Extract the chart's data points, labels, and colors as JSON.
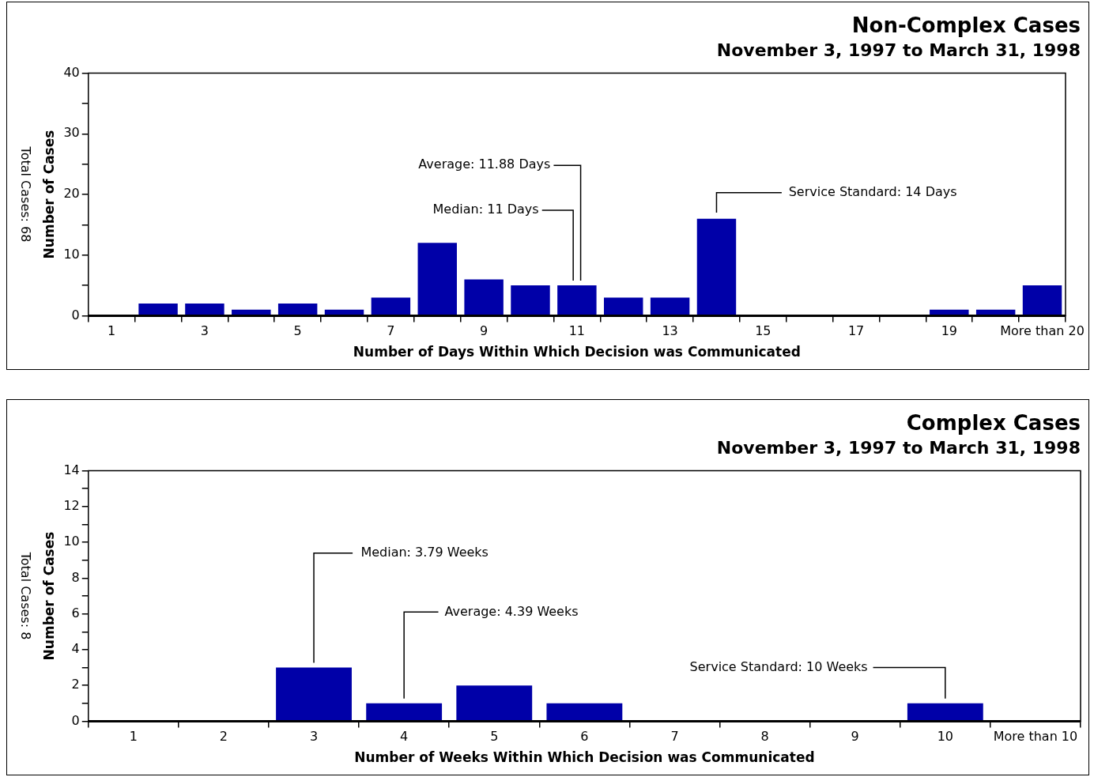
{
  "chart_data": [
    {
      "type": "bar",
      "title": "Non-Complex Cases",
      "subtitle": "November 3, 1997 to March 31, 1998",
      "xlabel": "Number of Days Within Which Decision was Communicated",
      "ylabel": "Number of Cases",
      "categories": [
        "1",
        null,
        "3",
        null,
        "5",
        null,
        "7",
        null,
        "9",
        null,
        "11",
        null,
        "13",
        null,
        "15",
        null,
        "17",
        null,
        "19",
        null,
        "More than 20"
      ],
      "values": [
        0,
        2,
        2,
        1,
        2,
        1,
        3,
        12,
        6,
        5,
        5,
        3,
        3,
        16,
        0,
        0,
        0,
        0,
        1,
        1,
        5
      ],
      "color": "#0000a8",
      "ylim": [
        0,
        40
      ],
      "yticks": [
        0,
        {
          "value": 5,
          "label": null
        },
        10,
        {
          "value": 15,
          "label": null
        },
        20,
        {
          "value": 25,
          "label": null
        },
        30,
        {
          "value": 35,
          "label": null
        },
        40
      ],
      "annotations": [
        {
          "text": "Average: 11.88 Days",
          "x": "11",
          "y": 5
        },
        {
          "text": "Median: 11 Days",
          "x": "11",
          "y": 5
        },
        "Service Standard: 14 Days",
        "Total Cases: 68"
      ],
      "grid": false,
      "legend": false
    },
    {
      "type": "bar",
      "title": "Complex Cases",
      "subtitle": "November 3, 1997 to March 31, 1998",
      "xlabel": "Number of Weeks Within Which Decision was Communicated",
      "ylabel": "Number of Cases",
      "categories": [
        "1",
        "2",
        "3",
        "4",
        "5",
        "6",
        "7",
        "8",
        "9",
        "10",
        "More than 10"
      ],
      "values": [
        0,
        0,
        3,
        1,
        2,
        1,
        0,
        0,
        0,
        1,
        0
      ],
      "color": "#0000a8",
      "ylim": [
        0,
        14
      ],
      "yticks": [
        0,
        {
          "value": 1,
          "label": null
        },
        2,
        {
          "value": 3,
          "label": null
        },
        4,
        {
          "value": 5,
          "label": null
        },
        6,
        {
          "value": 7,
          "label": null
        },
        8,
        {
          "value": 9,
          "label": null
        },
        10,
        {
          "value": 11,
          "label": null
        },
        12,
        {
          "value": 13,
          "label": null
        },
        14
      ],
      "annotations": [
        {
          "text": "Median: 3.79 Weeks",
          "x": "3",
          "y": 3
        },
        {
          "text": "Average: 4.39 Weeks",
          "x": "4",
          "y": 1
        },
        {
          "text": "Service Standard: 10 Weeks",
          "x": "10",
          "y": 1
        },
        "Total Cases: 8"
      ],
      "grid": false,
      "legend": false
    }
  ]
}
